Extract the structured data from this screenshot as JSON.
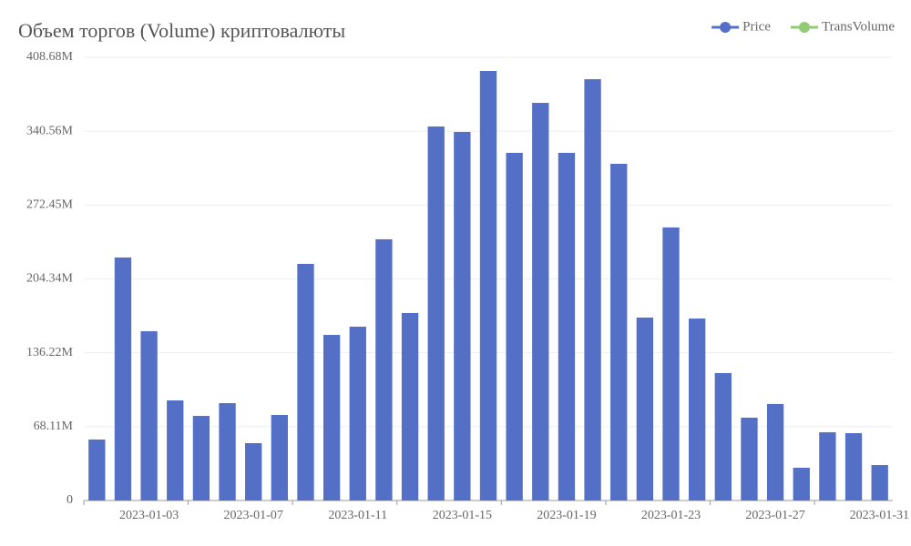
{
  "chart_data": {
    "type": "bar",
    "title": "Объем торгов (Volume) криптовалюты",
    "legend": [
      {
        "name": "Price",
        "color": "#5470c6"
      },
      {
        "name": "TransVolume",
        "color": "#91cc75"
      }
    ],
    "categories": [
      null,
      null,
      "2023-01-03",
      null,
      null,
      null,
      "2023-01-07",
      null,
      null,
      null,
      "2023-01-11",
      null,
      null,
      null,
      "2023-01-15",
      null,
      null,
      null,
      "2023-01-19",
      null,
      null,
      null,
      "2023-01-23",
      null,
      null,
      null,
      "2023-01-27",
      null,
      null,
      null,
      "2023-01-31"
    ],
    "series": [
      {
        "color": "#5470c6",
        "values": [
          56200000,
          224100000,
          156100000,
          92300000,
          78000000,
          89800000,
          52900000,
          78900000,
          218200000,
          152700000,
          160300000,
          240900000,
          172900000,
          344900000,
          339900000,
          396100000,
          320600000,
          366700000,
          320600000,
          388500000,
          310500000,
          168700000,
          251800000,
          167800000,
          117500000,
          76400000,
          89000000,
          30200000,
          62900000,
          62100000,
          32700000
        ]
      }
    ],
    "ylim": [
      0,
      408680000
    ],
    "yticks": [
      0,
      {
        "value": 68110000,
        "label": "68.11M"
      },
      {
        "value": 136220000,
        "label": "136.22M"
      },
      {
        "value": 204340000,
        "label": "204.34M"
      },
      {
        "value": 272450000,
        "label": "272.45M"
      },
      {
        "value": 340560000,
        "label": "340.56M"
      },
      {
        "value": 408680000,
        "label": "408.68M"
      }
    ],
    "grid": true
  }
}
